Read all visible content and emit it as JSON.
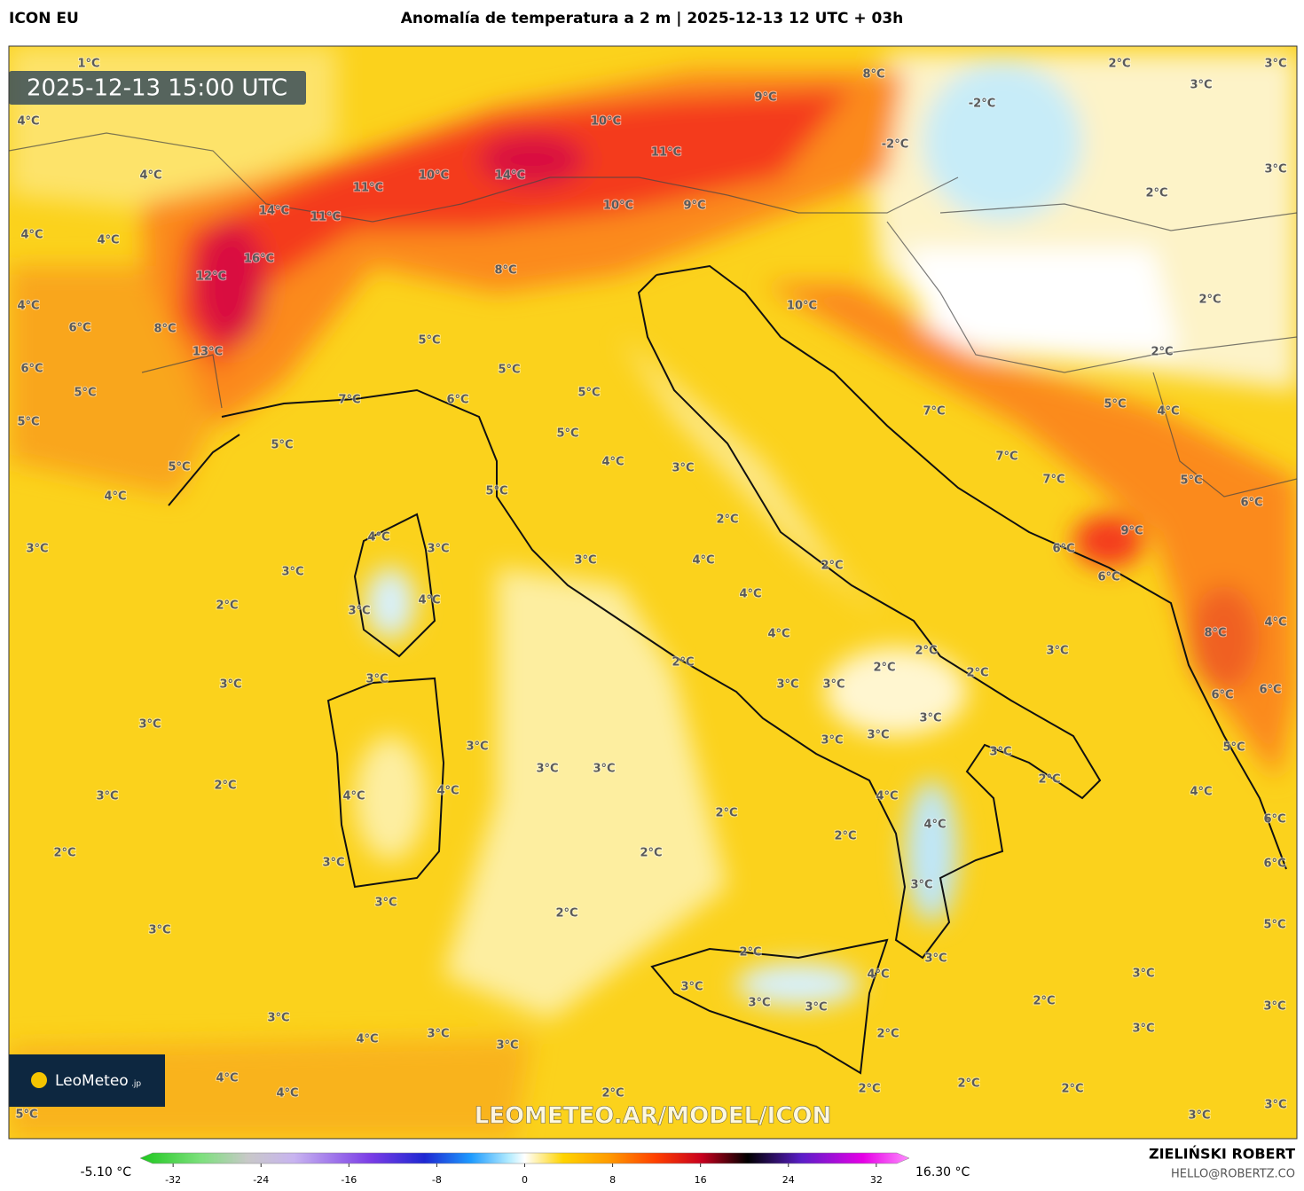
{
  "header": {
    "model": "ICON EU",
    "title": "Anomalía de temperatura a 2 m | 2025-12-13 12 UTC + 03h"
  },
  "map": {
    "valid_time": "2025-12-13 15:00 UTC",
    "watermark": "LEOMETEO.AR/MODEL/ICON",
    "logo": "LeoMeteo",
    "logo_suffix": ".jp",
    "labels": [
      "1°C",
      "4°C",
      "4°C",
      "4°C",
      "4°C",
      "4°C",
      "6°C",
      "6°C",
      "5°C",
      "5°C",
      "5°C",
      "4°C",
      "5°C",
      "7°C",
      "8°C",
      "12°C",
      "13°C",
      "16°C",
      "14°C",
      "11°C",
      "11°C",
      "10°C",
      "14°C",
      "10°C",
      "11°C",
      "10°C",
      "9°C",
      "9°C",
      "8°C",
      "-2°C",
      "-2°C",
      "2°C",
      "3°C",
      "3°C",
      "3°C",
      "2°C",
      "2°C",
      "2°C",
      "8°C",
      "5°C",
      "5°C",
      "6°C",
      "5°C",
      "5°C",
      "4°C",
      "3°C",
      "5°C",
      "10°C",
      "7°C",
      "7°C",
      "7°C",
      "5°C",
      "4°C",
      "5°C",
      "6°C",
      "9°C",
      "6°C",
      "6°C",
      "3°C",
      "3°C",
      "4°C",
      "3°C",
      "2°C",
      "3°C",
      "4°C",
      "3°C",
      "2°C",
      "4°C",
      "4°C",
      "2°C",
      "3°C",
      "3°C",
      "3°C",
      "3°C",
      "2°C",
      "3°C",
      "4°C",
      "4°C",
      "3°C",
      "3°C",
      "2°C",
      "4°C",
      "3°C",
      "3°C",
      "2°C",
      "2°C",
      "2°C",
      "3°C",
      "3°C",
      "3°C",
      "3°C",
      "3°C",
      "2°C",
      "4°C",
      "4°C",
      "2°C",
      "2°C",
      "2°C",
      "2°C",
      "3°C",
      "3°C",
      "3°C",
      "2°C",
      "3°C",
      "3°C",
      "2°C",
      "4°C",
      "3°C",
      "3°C",
      "3°C",
      "2°C",
      "2°C",
      "2°C",
      "2°C",
      "2°C",
      "3°C",
      "3°C",
      "3°C",
      "3°C",
      "3°C",
      "5°C",
      "6°C",
      "6°C",
      "4°C",
      "5°C",
      "6°C",
      "6°C",
      "4°C",
      "8°C",
      "3°C",
      "4°C",
      "3°C",
      "3°C",
      "4°C",
      "4°C",
      "2°C",
      "5°C"
    ]
  },
  "colorbar": {
    "min_label": "-5.10 °C",
    "max_label": "16.30 °C",
    "lim": [
      -35,
      35
    ],
    "ticks": [
      -32,
      -24,
      -16,
      -8,
      0,
      8,
      16,
      24,
      32
    ]
  },
  "footer": {
    "author": "ZIELIŃSKI ROBERT",
    "contact": "HELLO@ROBERTZ.CO"
  }
}
